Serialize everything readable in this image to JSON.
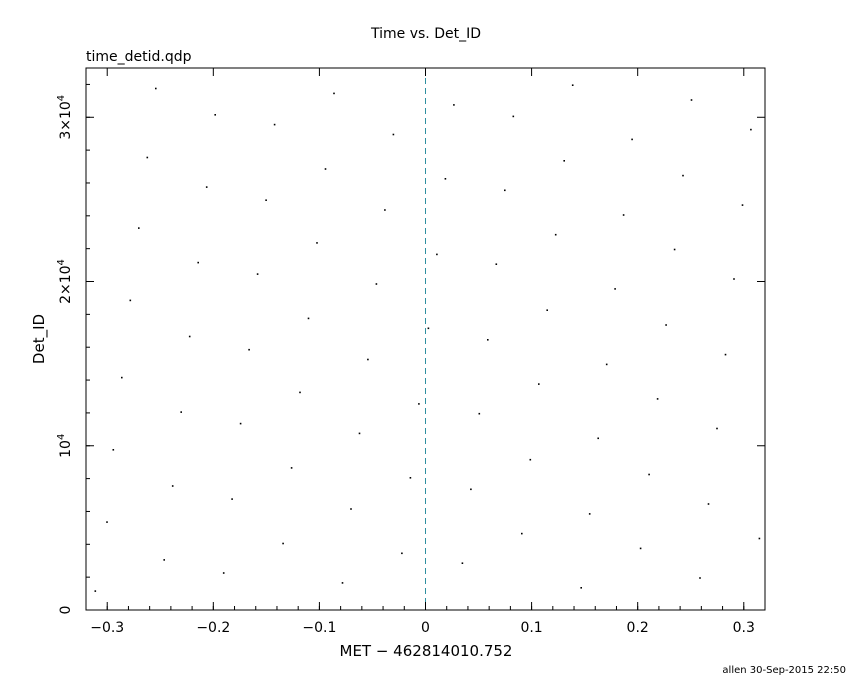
{
  "chart_data": {
    "type": "scatter",
    "title": "Time vs. Det_ID",
    "subtitle": "time_detid.qdp",
    "xlabel": "MET − 462814010.752",
    "ylabel": "Det_ID",
    "footer": "allen 30-Sep-2015 22:50",
    "xlim": [
      -0.32,
      0.32
    ],
    "ylim": [
      0,
      33000
    ],
    "x_ticks": [
      {
        "value": -0.3,
        "label": "−0.3"
      },
      {
        "value": -0.2,
        "label": "−0.2"
      },
      {
        "value": -0.1,
        "label": "−0.1"
      },
      {
        "value": 0,
        "label": "0"
      },
      {
        "value": 0.1,
        "label": "0.1"
      },
      {
        "value": 0.2,
        "label": "0.2"
      },
      {
        "value": 0.3,
        "label": "0.3"
      }
    ],
    "y_ticks": [
      {
        "value": 0,
        "mantissa": "",
        "base": "0",
        "exp": ""
      },
      {
        "value": 10000,
        "mantissa": "",
        "base": "10",
        "exp": "4"
      },
      {
        "value": 20000,
        "mantissa": "2×",
        "base": "10",
        "exp": "4"
      },
      {
        "value": 30000,
        "mantissa": "3×",
        "base": "10",
        "exp": "4"
      }
    ],
    "reference_line": {
      "x": 0,
      "color": "#2e8fa0",
      "style": "dashed"
    },
    "point_color": "#000000",
    "series": [
      {
        "points": [
          [
            -0.312,
            1200
          ],
          [
            -0.301,
            5400
          ],
          [
            -0.295,
            9800
          ],
          [
            -0.287,
            14200
          ],
          [
            -0.279,
            18900
          ],
          [
            -0.271,
            23300
          ],
          [
            -0.263,
            27600
          ],
          [
            -0.255,
            31800
          ],
          [
            -0.247,
            3100
          ],
          [
            -0.239,
            7600
          ],
          [
            -0.231,
            12100
          ],
          [
            -0.223,
            16700
          ],
          [
            -0.215,
            21200
          ],
          [
            -0.207,
            25800
          ],
          [
            -0.199,
            30200
          ],
          [
            -0.191,
            2300
          ],
          [
            -0.183,
            6800
          ],
          [
            -0.175,
            11400
          ],
          [
            -0.167,
            15900
          ],
          [
            -0.159,
            20500
          ],
          [
            -0.151,
            25000
          ],
          [
            -0.143,
            29600
          ],
          [
            -0.135,
            4100
          ],
          [
            -0.127,
            8700
          ],
          [
            -0.119,
            13300
          ],
          [
            -0.111,
            17800
          ],
          [
            -0.103,
            22400
          ],
          [
            -0.095,
            26900
          ],
          [
            -0.087,
            31500
          ],
          [
            -0.079,
            1700
          ],
          [
            -0.071,
            6200
          ],
          [
            -0.063,
            10800
          ],
          [
            -0.055,
            15300
          ],
          [
            -0.047,
            19900
          ],
          [
            -0.039,
            24400
          ],
          [
            -0.031,
            29000
          ],
          [
            -0.023,
            3500
          ],
          [
            -0.015,
            8100
          ],
          [
            -0.007,
            12600
          ],
          [
            0.002,
            17200
          ],
          [
            0.01,
            21700
          ],
          [
            0.018,
            26300
          ],
          [
            0.026,
            30800
          ],
          [
            0.034,
            2900
          ],
          [
            0.042,
            7400
          ],
          [
            0.05,
            12000
          ],
          [
            0.058,
            16500
          ],
          [
            0.066,
            21100
          ],
          [
            0.074,
            25600
          ],
          [
            0.082,
            30100
          ],
          [
            0.09,
            4700
          ],
          [
            0.098,
            9200
          ],
          [
            0.106,
            13800
          ],
          [
            0.114,
            18300
          ],
          [
            0.122,
            22900
          ],
          [
            0.13,
            27400
          ],
          [
            0.138,
            32000
          ],
          [
            0.146,
            1400
          ],
          [
            0.154,
            5900
          ],
          [
            0.162,
            10500
          ],
          [
            0.17,
            15000
          ],
          [
            0.178,
            19600
          ],
          [
            0.186,
            24100
          ],
          [
            0.194,
            28700
          ],
          [
            0.202,
            3800
          ],
          [
            0.21,
            8300
          ],
          [
            0.218,
            12900
          ],
          [
            0.226,
            17400
          ],
          [
            0.234,
            22000
          ],
          [
            0.242,
            26500
          ],
          [
            0.25,
            31100
          ],
          [
            0.258,
            2000
          ],
          [
            0.266,
            6500
          ],
          [
            0.274,
            11100
          ],
          [
            0.282,
            15600
          ],
          [
            0.29,
            20200
          ],
          [
            0.298,
            24700
          ],
          [
            0.306,
            29300
          ],
          [
            0.314,
            4400
          ]
        ]
      }
    ]
  }
}
